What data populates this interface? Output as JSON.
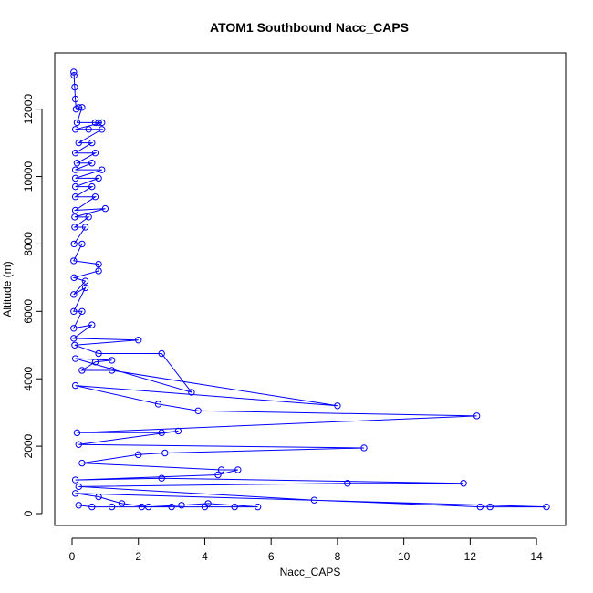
{
  "chart_data": {
    "type": "line",
    "title": "ATOM1 Southbound Nacc_CAPS",
    "xlabel": "Nacc_CAPS",
    "ylabel": "Altitude (m)",
    "xlim": [
      0,
      14.3
    ],
    "ylim": [
      0,
      13100
    ],
    "x_ticks": [
      0,
      2,
      4,
      6,
      8,
      10,
      12,
      14
    ],
    "y_ticks": [
      0,
      2000,
      4000,
      6000,
      8000,
      10000,
      12000
    ],
    "grid": false,
    "color": "#0000ff",
    "markers": "open-circle",
    "series": [
      {
        "points": [
          [
            0.05,
            13100
          ],
          [
            0.06,
            13000
          ],
          [
            0.08,
            12650
          ],
          [
            0.1,
            12300
          ],
          [
            0.12,
            12000
          ],
          [
            0.2,
            12050
          ],
          [
            0.3,
            12050
          ],
          [
            0.15,
            11600
          ],
          [
            0.7,
            11600
          ],
          [
            0.8,
            11600
          ],
          [
            0.9,
            11600
          ],
          [
            0.1,
            11400
          ],
          [
            0.5,
            11400
          ],
          [
            0.9,
            11400
          ],
          [
            0.2,
            11000
          ],
          [
            0.6,
            11000
          ],
          [
            0.1,
            10700
          ],
          [
            0.7,
            10700
          ],
          [
            0.15,
            10400
          ],
          [
            0.6,
            10400
          ],
          [
            0.1,
            10200
          ],
          [
            0.9,
            10200
          ],
          [
            0.1,
            9950
          ],
          [
            0.8,
            9950
          ],
          [
            0.1,
            9700
          ],
          [
            0.6,
            9700
          ],
          [
            0.1,
            9400
          ],
          [
            0.7,
            9400
          ],
          [
            0.1,
            9000
          ],
          [
            1.0,
            9050
          ],
          [
            0.08,
            8800
          ],
          [
            0.5,
            8800
          ],
          [
            0.08,
            8500
          ],
          [
            0.4,
            8500
          ],
          [
            0.06,
            8000
          ],
          [
            0.3,
            8000
          ],
          [
            0.05,
            7500
          ],
          [
            0.8,
            7400
          ],
          [
            0.8,
            7200
          ],
          [
            0.06,
            7000
          ],
          [
            0.4,
            6900
          ],
          [
            0.05,
            6500
          ],
          [
            0.4,
            6700
          ],
          [
            0.05,
            6000
          ],
          [
            0.3,
            6000
          ],
          [
            0.05,
            5500
          ],
          [
            0.6,
            5600
          ],
          [
            0.05,
            5200
          ],
          [
            2.0,
            5150
          ],
          [
            0.08,
            5000
          ],
          [
            0.8,
            4750
          ],
          [
            2.7,
            4750
          ],
          [
            3.6,
            3600
          ],
          [
            0.1,
            4600
          ],
          [
            1.2,
            4550
          ],
          [
            0.7,
            4500
          ],
          [
            0.3,
            4250
          ],
          [
            1.2,
            4250
          ],
          [
            8.0,
            3200
          ],
          [
            0.1,
            3800
          ],
          [
            2.6,
            3250
          ],
          [
            3.8,
            3050
          ],
          [
            12.2,
            2900
          ],
          [
            0.15,
            2400
          ],
          [
            2.7,
            2400
          ],
          [
            3.2,
            2450
          ],
          [
            0.2,
            2050
          ],
          [
            8.8,
            1950
          ],
          [
            2.8,
            1800
          ],
          [
            2.0,
            1750
          ],
          [
            0.3,
            1500
          ],
          [
            4.5,
            1300
          ],
          [
            5.0,
            1300
          ],
          [
            4.4,
            1150
          ],
          [
            0.1,
            1000
          ],
          [
            2.7,
            1050
          ],
          [
            11.8,
            900
          ],
          [
            8.3,
            900
          ],
          [
            0.2,
            800
          ],
          [
            7.3,
            400
          ],
          [
            12.3,
            200
          ],
          [
            12.6,
            200
          ],
          [
            14.3,
            200
          ],
          [
            0.1,
            600
          ],
          [
            0.8,
            500
          ],
          [
            1.5,
            300
          ],
          [
            2.3,
            200
          ],
          [
            3.3,
            250
          ],
          [
            4.1,
            300
          ],
          [
            5.6,
            200
          ],
          [
            4.9,
            200
          ],
          [
            4.0,
            200
          ],
          [
            3.0,
            200
          ],
          [
            2.1,
            200
          ],
          [
            1.2,
            200
          ],
          [
            0.6,
            200
          ],
          [
            0.2,
            250
          ]
        ]
      }
    ]
  }
}
